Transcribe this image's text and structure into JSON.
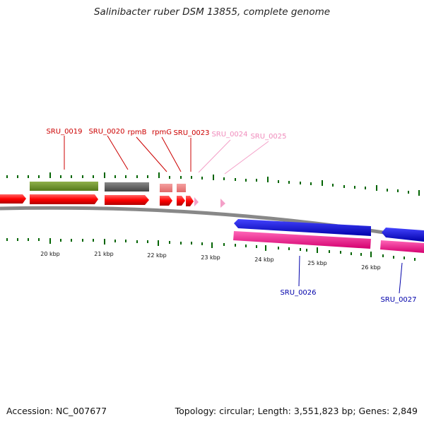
{
  "title": "Salinibacter ruber DSM 13855, complete genome",
  "footer": {
    "accession": "Accession: NC_007677",
    "summary": "Topology: circular; Length: 3,551,823 bp; Genes: 2,849"
  },
  "scale_labels": [
    "20 kbp",
    "21 kbp",
    "22 kbp",
    "23 kbp",
    "24 kbp",
    "25 kbp",
    "26 kbp"
  ],
  "genes_top": [
    {
      "label": "SRU_0019",
      "color": "#cc0000"
    },
    {
      "label": "SRU_0020",
      "color": "#cc0000"
    },
    {
      "label": "rpmB",
      "color": "#cc0000"
    },
    {
      "label": "rpmG",
      "color": "#cc0000"
    },
    {
      "label": "SRU_0023",
      "color": "#cc0000"
    },
    {
      "label": "SRU_0024",
      "color": "#f08cbc"
    },
    {
      "label": "SRU_0025",
      "color": "#f08cbc"
    }
  ],
  "genes_bottom": [
    {
      "label": "SRU_0026",
      "color": "#0000aa"
    },
    {
      "label": "SRU_0027",
      "color": "#0000aa"
    }
  ],
  "colors": {
    "cds_forward": "#ff0000",
    "cds_reverse": "#ff1493",
    "gene_forward_top": "#6b8e23",
    "gene_gray": "#555555",
    "gene_pink": "#f08080",
    "gene_reverse": "#0000ff",
    "backbone": "#888888",
    "tick": "#006400"
  }
}
